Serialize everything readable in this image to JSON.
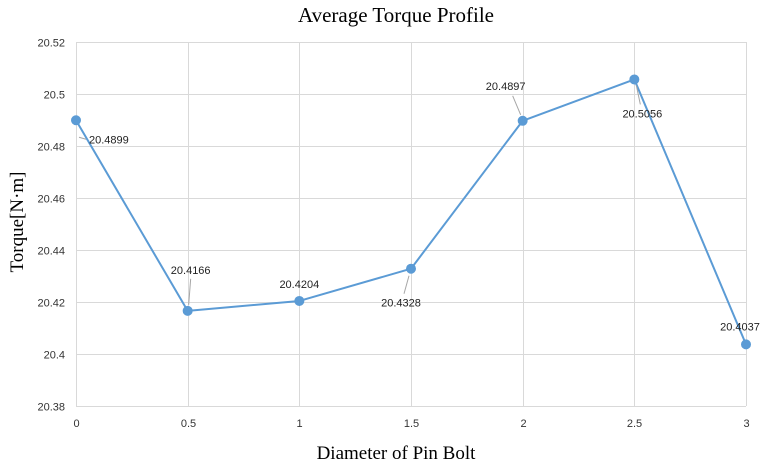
{
  "chart_data": {
    "type": "line",
    "title": "Average Torque Profile",
    "xlabel": "Diameter of Pin Bolt",
    "ylabel": "Torque[N·m]",
    "x": [
      0,
      0.5,
      1,
      1.5,
      2,
      2.5,
      3
    ],
    "x_tick_labels": [
      "0",
      "0.5",
      "1",
      "1.5",
      "2",
      "2.5",
      "3"
    ],
    "series": [
      {
        "values": [
          20.4899,
          20.4166,
          20.4204,
          20.4328,
          20.4897,
          20.5056,
          20.4037
        ],
        "data_labels": [
          "20.4899",
          "20.4166",
          "20.4204",
          "20.4328",
          "20.4897",
          "20.5056",
          "20.4037"
        ],
        "color": "#5b9bd5"
      }
    ],
    "xlim": [
      0,
      3
    ],
    "ylim": [
      20.38,
      20.52
    ],
    "y_ticks": [
      20.38,
      20.4,
      20.42,
      20.44,
      20.46,
      20.48,
      20.5,
      20.52
    ],
    "y_tick_labels": [
      "20.38",
      "20.4",
      "20.42",
      "20.44",
      "20.46",
      "20.48",
      "20.5",
      "20.52"
    ],
    "grid": true,
    "legend": "none",
    "gridline_color": "#d9d9d9"
  }
}
